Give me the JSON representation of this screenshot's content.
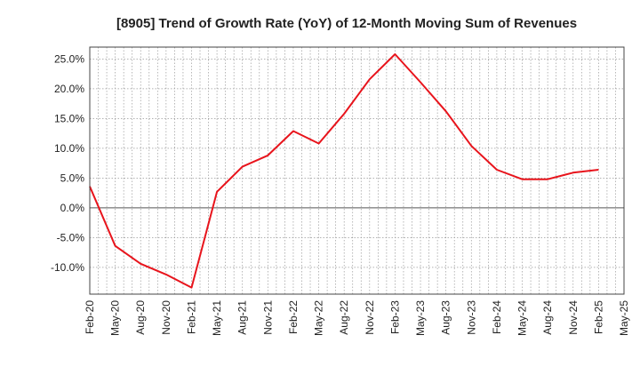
{
  "chart_data": {
    "type": "line",
    "title": "[8905]  Trend of Growth Rate (YoY) of 12-Month Moving Sum of Revenues",
    "xlabel": "",
    "ylabel": "",
    "x_tick_labels": [
      "Feb-20",
      "May-20",
      "Aug-20",
      "Nov-20",
      "Feb-21",
      "May-21",
      "Aug-21",
      "Nov-21",
      "Feb-22",
      "May-22",
      "Aug-22",
      "Nov-22",
      "Feb-23",
      "May-23",
      "Aug-23",
      "Nov-23",
      "Feb-24",
      "May-24",
      "Aug-24",
      "Nov-24",
      "Feb-25",
      "May-25"
    ],
    "y_ticks": [
      -10,
      -5,
      0,
      5,
      10,
      15,
      20,
      25
    ],
    "y_tick_labels": [
      "-10.0%",
      "-5.0%",
      "0.0%",
      "5.0%",
      "10.0%",
      "15.0%",
      "20.0%",
      "25.0%"
    ],
    "ylim": [
      -14.5,
      27
    ],
    "grid": true,
    "series": [
      {
        "color": "#e8141c",
        "x": [
          "Feb-20",
          "May-20",
          "Aug-20",
          "Nov-20",
          "Feb-21",
          "May-21",
          "Aug-21",
          "Nov-21",
          "Feb-22",
          "May-22",
          "Aug-22",
          "Nov-22",
          "Feb-23",
          "May-23",
          "Aug-23",
          "Nov-23",
          "Feb-24",
          "May-24",
          "Aug-24",
          "Nov-24",
          "Feb-25"
        ],
        "values": [
          3.6,
          -6.4,
          -9.4,
          -11.2,
          -13.4,
          2.7,
          6.9,
          8.8,
          12.9,
          10.8,
          15.8,
          21.6,
          25.8,
          21.1,
          16.2,
          10.4,
          6.4,
          4.8,
          4.8,
          5.9,
          6.4
        ]
      }
    ],
    "colors": {
      "zero_line": "#555555",
      "grid": "#999999",
      "axis": "#444444"
    }
  }
}
